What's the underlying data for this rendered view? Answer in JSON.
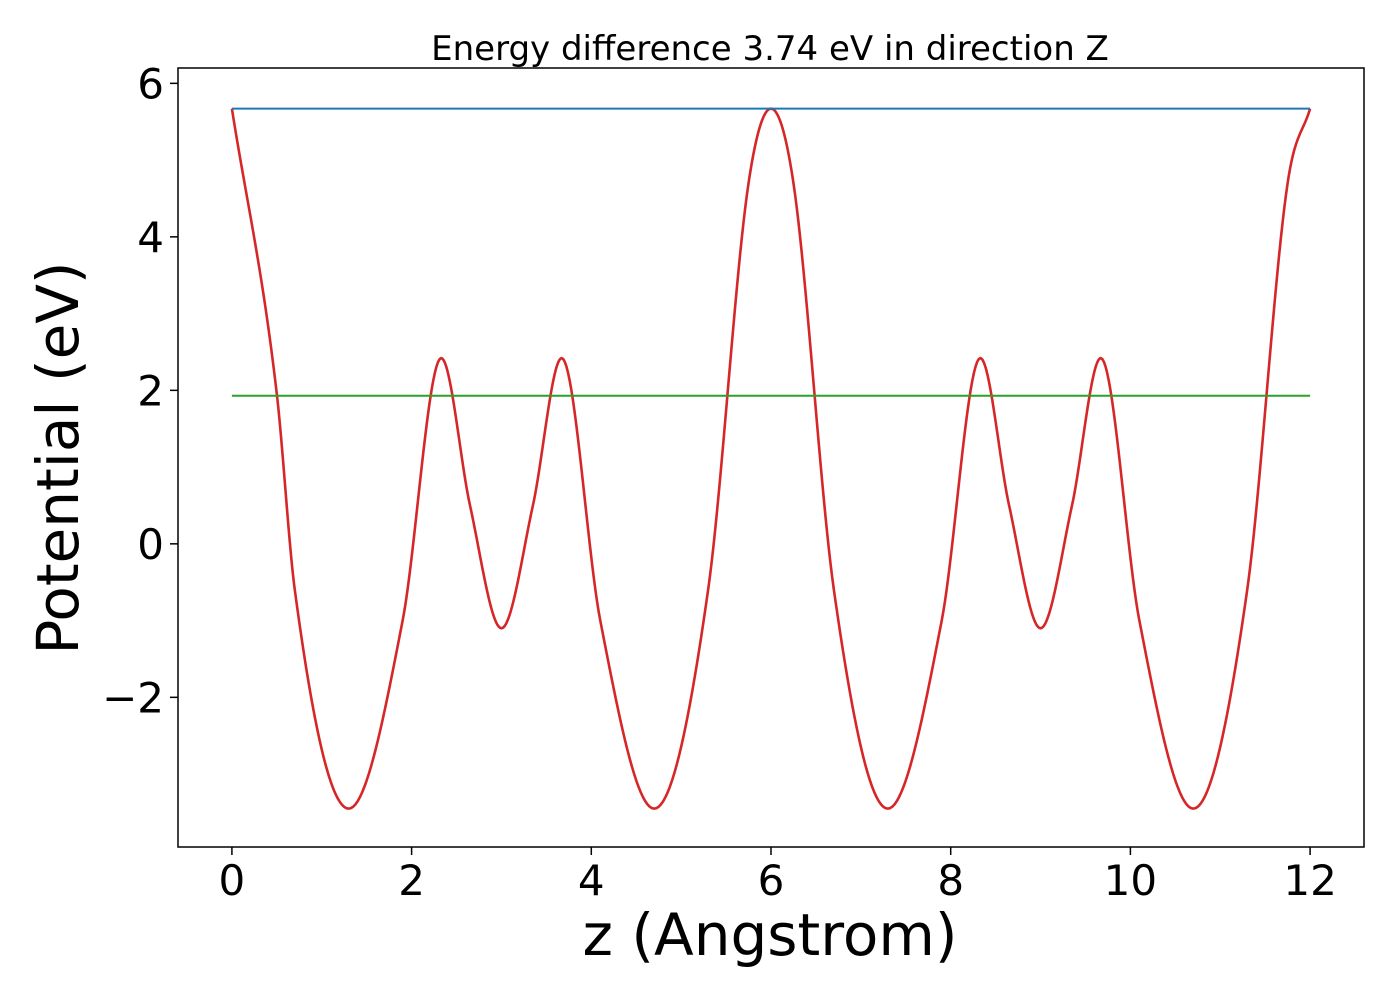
{
  "chart_data": {
    "type": "line",
    "title": "Energy difference 3.74 eV in direction Z",
    "xlabel": "z (Angstrom)",
    "ylabel": "Potential (eV)",
    "xlim": [
      -0.6,
      12.6
    ],
    "ylim": [
      -3.95,
      6.2
    ],
    "x_ticks": [
      0,
      2,
      4,
      6,
      8,
      10,
      12
    ],
    "x_tick_labels": [
      "0",
      "2",
      "4",
      "6",
      "8",
      "10",
      "12"
    ],
    "y_ticks": [
      -2,
      0,
      2,
      4,
      6
    ],
    "y_tick_labels": [
      "−2",
      "0",
      "2",
      "4",
      "6"
    ],
    "grid": false,
    "legend": "none",
    "series": [
      {
        "role": "potential-curve",
        "color": "#d62728",
        "x": [
          0,
          0.5,
          0.7,
          1.3,
          1.9,
          2.33,
          2.65,
          3.0,
          3.35,
          3.67,
          4.1,
          4.7,
          5.3,
          5.75,
          6.0,
          6.25,
          6.7,
          7.3,
          7.9,
          8.33,
          8.65,
          9.0,
          9.35,
          9.67,
          10.1,
          10.7,
          11.3,
          11.75,
          12.0
        ],
        "y": [
          5.67,
          1.95,
          -0.6,
          -3.45,
          -1.0,
          2.42,
          0.5,
          -1.1,
          0.5,
          2.42,
          -1.0,
          -3.45,
          -0.6,
          4.7,
          5.67,
          4.7,
          -0.6,
          -3.45,
          -1.0,
          2.42,
          0.5,
          -1.1,
          0.5,
          2.42,
          -1.0,
          -3.45,
          -0.6,
          4.7,
          5.67
        ]
      },
      {
        "role": "maximum-level",
        "color": "#1f77b4",
        "x": [
          0,
          12
        ],
        "y": [
          5.67,
          5.67
        ]
      },
      {
        "role": "average-level",
        "color": "#2ca02c",
        "x": [
          0,
          12
        ],
        "y": [
          1.93,
          1.93
        ]
      }
    ]
  }
}
